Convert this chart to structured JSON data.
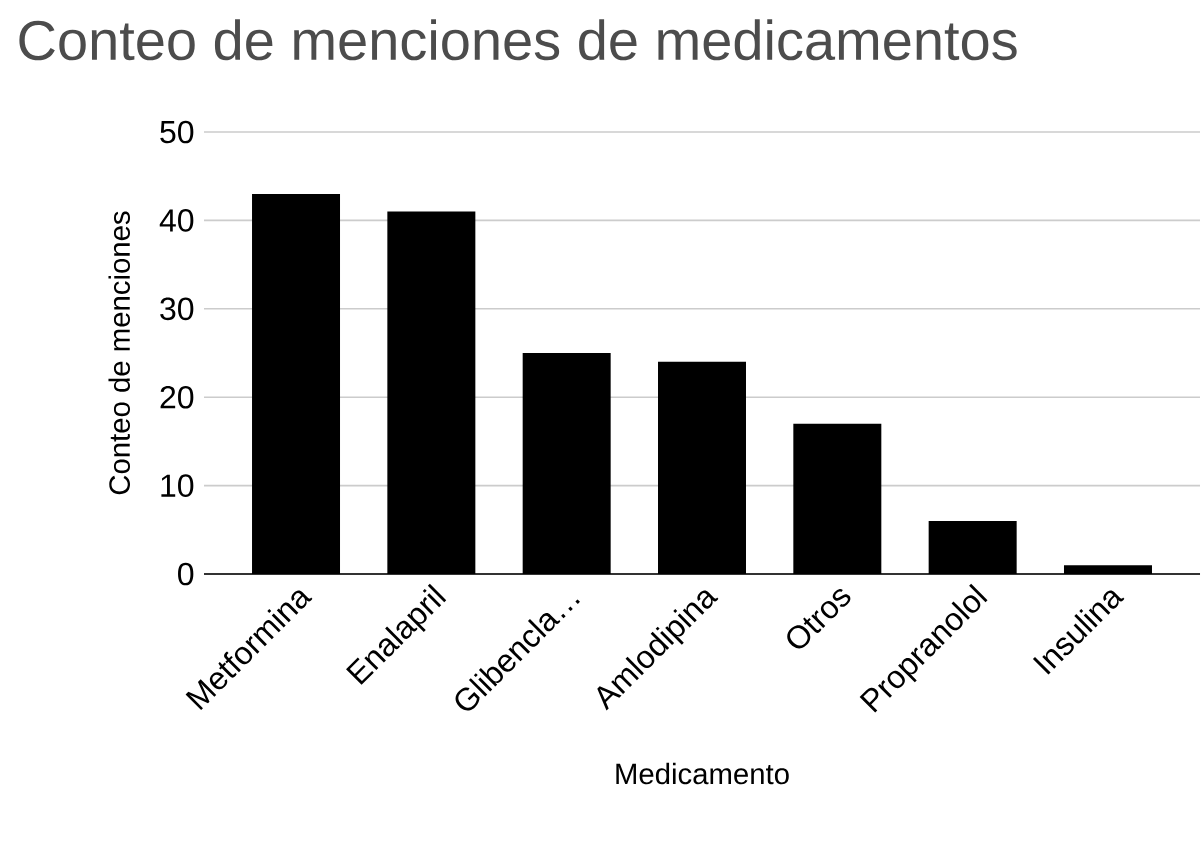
{
  "chart_data": {
    "type": "bar",
    "title": "Conteo de menciones de medicamentos",
    "xlabel": "Medicamento",
    "ylabel": "Conteo de menciones",
    "categories": [
      "Metformina",
      "Enalapril",
      "Glibencla…",
      "Amlodipina",
      "Otros",
      "Propranolol",
      "Insulina"
    ],
    "values": [
      43,
      41,
      25,
      24,
      17,
      6,
      1
    ],
    "color": "#000000",
    "ylim": [
      0,
      50
    ],
    "yticks": [
      0,
      10,
      20,
      30,
      40,
      50
    ],
    "grid": "y"
  }
}
